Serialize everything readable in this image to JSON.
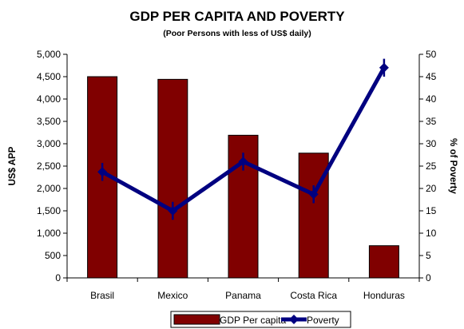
{
  "chart_data": {
    "type": "bar",
    "title": "GDP PER CAPITA AND POVERTY",
    "subtitle": "(Poor Persons with less of US$ daily)",
    "categories": [
      "Brasil",
      "Mexico",
      "Panama",
      "Costa Rica",
      "Honduras"
    ],
    "series": [
      {
        "name": "GDP Per capita",
        "type": "bar",
        "axis": "left",
        "color": "#800000",
        "values": [
          4500,
          4440,
          3190,
          2790,
          720
        ]
      },
      {
        "name": "Poverty",
        "type": "line",
        "axis": "right",
        "color": "#000080",
        "values": [
          23.7,
          15.0,
          26.0,
          18.7,
          47.0
        ],
        "error": [
          2.0,
          2.0,
          2.0,
          2.0,
          2.0
        ]
      }
    ],
    "ylabel": "US$ APP",
    "y2label": "% of Poverty",
    "ylim": [
      0,
      5000
    ],
    "y2lim": [
      0,
      50
    ],
    "yticks": [
      "0",
      "500",
      "1,000",
      "1,500",
      "2,000",
      "2,500",
      "3,000",
      "3,500",
      "4,000",
      "4,500",
      "5,000"
    ],
    "y2ticks": [
      "0",
      "5",
      "10",
      "15",
      "20",
      "25",
      "30",
      "35",
      "40",
      "45",
      "50"
    ],
    "grid": false,
    "legend_position": "bottom"
  }
}
